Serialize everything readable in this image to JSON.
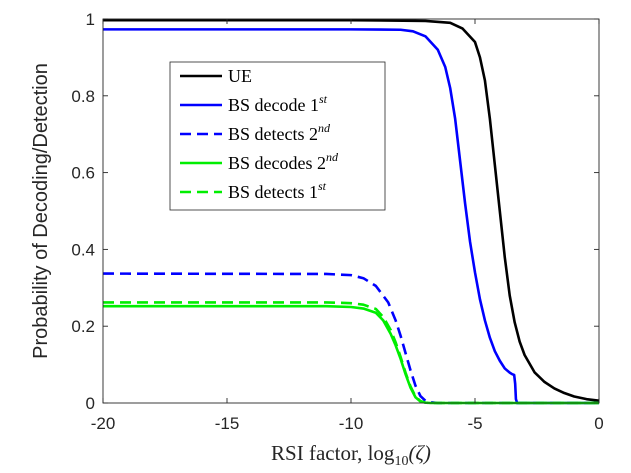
{
  "chart_data": {
    "type": "line",
    "title": "",
    "xlabel_main": "RSI factor, log",
    "xlabel_sub": "10",
    "xlabel_arg": "(ζ)",
    "ylabel": "Probability of Decoding/Detection",
    "xlim": [
      -20,
      0
    ],
    "ylim": [
      0,
      1
    ],
    "xticks": [
      -20,
      -15,
      -10,
      -5,
      0
    ],
    "yticks": [
      0,
      0.2,
      0.4,
      0.6,
      0.8,
      1
    ],
    "xtick_labels": [
      "-20",
      "-15",
      "-10",
      "-5",
      "0"
    ],
    "ytick_labels": [
      "0",
      "0.2",
      "0.4",
      "0.6",
      "0.8",
      "1"
    ],
    "grid": false,
    "legend_position": "upper-center",
    "series": [
      {
        "name": "UE",
        "label_main": "UE",
        "label_sup": "",
        "color": "#000000",
        "dash": "solid",
        "x": [
          -20,
          -10,
          -7,
          -6,
          -5.5,
          -5,
          -4.8,
          -4.6,
          -4.4,
          -4.2,
          -4.0,
          -3.8,
          -3.6,
          -3.4,
          -3.2,
          -3.0,
          -2.6,
          -2.2,
          -1.8,
          -1.4,
          -1.0,
          -0.5,
          0
        ],
        "y": [
          0.997,
          0.997,
          0.995,
          0.99,
          0.975,
          0.94,
          0.9,
          0.84,
          0.74,
          0.62,
          0.5,
          0.38,
          0.28,
          0.21,
          0.16,
          0.125,
          0.08,
          0.055,
          0.038,
          0.026,
          0.017,
          0.01,
          0.006
        ]
      },
      {
        "name": "BS decode 1st",
        "label_main": "BS decode 1",
        "label_sup": "st",
        "color": "#0000ff",
        "dash": "solid",
        "x": [
          -20,
          -10,
          -8,
          -7.5,
          -7.0,
          -6.5,
          -6.2,
          -6.0,
          -5.8,
          -5.6,
          -5.4,
          -5.2,
          -5.0,
          -4.8,
          -4.6,
          -4.4,
          -4.2,
          -4.0,
          -3.8,
          -3.6,
          -3.5,
          -3.42,
          -3.38,
          -3.35,
          -3.3,
          0
        ],
        "y": [
          0.973,
          0.973,
          0.972,
          0.968,
          0.955,
          0.92,
          0.875,
          0.82,
          0.74,
          0.63,
          0.52,
          0.42,
          0.34,
          0.27,
          0.215,
          0.17,
          0.135,
          0.11,
          0.09,
          0.079,
          0.075,
          0.073,
          0.05,
          0.01,
          0.0,
          0.0
        ]
      },
      {
        "name": "BS detects 2nd",
        "label_main": "BS detects 2",
        "label_sup": "nd",
        "color": "#0000ff",
        "dash": "dashed",
        "x": [
          -20,
          -11,
          -10,
          -9.5,
          -9.0,
          -8.5,
          -8.2,
          -8.0,
          -7.8,
          -7.6,
          -7.4,
          -7.2,
          -7.0,
          -6.8,
          -6.5,
          0
        ],
        "y": [
          0.337,
          0.336,
          0.333,
          0.325,
          0.305,
          0.262,
          0.215,
          0.175,
          0.13,
          0.085,
          0.045,
          0.018,
          0.006,
          0.002,
          0.0,
          0.0
        ]
      },
      {
        "name": "BS decodes 2nd",
        "label_main": "BS decodes 2",
        "label_sup": "nd",
        "color": "#00ee00",
        "dash": "solid",
        "x": [
          -20,
          -11,
          -10,
          -9.5,
          -9.0,
          -8.7,
          -8.4,
          -8.2,
          -8.0,
          -7.8,
          -7.6,
          -7.4,
          -7.2,
          -7.0,
          -6.8,
          0
        ],
        "y": [
          0.252,
          0.252,
          0.25,
          0.246,
          0.235,
          0.215,
          0.18,
          0.15,
          0.115,
          0.075,
          0.04,
          0.015,
          0.004,
          0.001,
          0.0,
          0.0
        ]
      },
      {
        "name": "BS detects 1st",
        "label_main": "BS detects 1",
        "label_sup": "st",
        "color": "#00ee00",
        "dash": "dashed",
        "x": [
          -20,
          -11,
          -10,
          -9.5,
          -9.0,
          -8.7,
          -8.4,
          -8.2,
          -8.0,
          -7.8,
          -7.6,
          -7.4,
          -7.2,
          -7.0,
          -6.8,
          0
        ],
        "y": [
          0.262,
          0.262,
          0.26,
          0.256,
          0.245,
          0.224,
          0.19,
          0.158,
          0.12,
          0.079,
          0.043,
          0.017,
          0.005,
          0.001,
          0.0,
          0.0
        ]
      }
    ]
  }
}
